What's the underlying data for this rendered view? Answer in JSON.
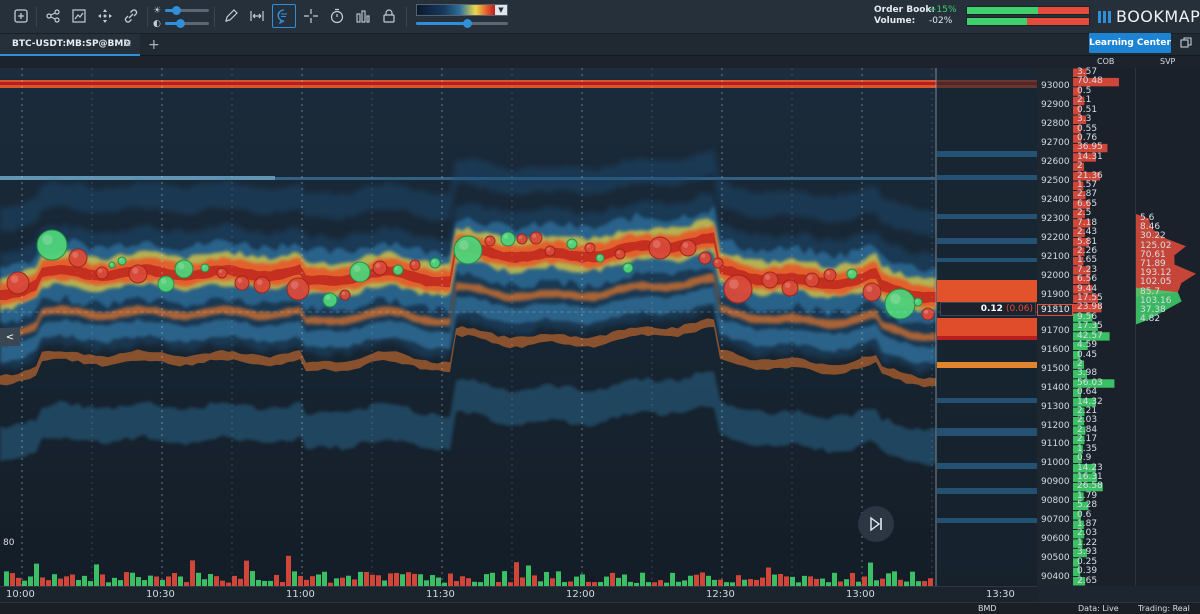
{
  "toolbar": {
    "buttons": [
      "zoom-in-icon",
      "share-icon",
      "indicators-icon",
      "move-icon",
      "link-icon"
    ],
    "right_buttons": [
      "pencil-icon",
      "range-icon",
      "chat-icon",
      "crosshair-icon",
      "timer-icon",
      "chart-settings-icon",
      "lock-icon"
    ],
    "brightness_level": 0.25,
    "contrast_level": 0.35,
    "palette_zoom_level": 0.55
  },
  "order_book": {
    "book_label": "Order Book:",
    "volume_label": "Volume:",
    "book_value": "+15%",
    "volume_value": "-02%",
    "book_color": "#3fd16b",
    "volume_color": "#e4e9ef",
    "book_buy_fraction": 0.58,
    "volume_buy_fraction": 0.49
  },
  "brand": {
    "name": "BOOKMAP",
    "accent": "#2f8fd8"
  },
  "tabs": [
    {
      "label": "BTC-USDT:MB:SP@BMD",
      "close": "✕"
    }
  ],
  "tab_add_label": "+",
  "learning_center_label": "Learning Center",
  "columns": {
    "cob": "COB",
    "svp": "SVP"
  },
  "price_axis": [
    "93000",
    "92900",
    "92800",
    "92700",
    "92600",
    "92500",
    "92400",
    "92300",
    "92200",
    "92100",
    "92000",
    "91900",
    "91810",
    "91700",
    "91600",
    "91500",
    "91400",
    "91300",
    "91200",
    "91100",
    "91000",
    "90900",
    "90800",
    "90700",
    "90600",
    "90500",
    "90400"
  ],
  "last_price": "91810",
  "marker": {
    "value": "0.12",
    "delta": "(0.06)"
  },
  "cob_values": [
    "3.57",
    "70.48",
    "0.5",
    "2.1",
    "0.51",
    "3.3",
    "0.55",
    "0.76",
    "36.95",
    "14.31",
    "2",
    "21.36",
    "1.57",
    "2.87",
    "6.65",
    "2.5",
    "7.18",
    "2.43",
    "5.81",
    "2.26",
    "1.65",
    "7.23",
    "6.56",
    "9.44",
    "17.55",
    "23.98",
    "9.56",
    "17.35",
    "42.57",
    "4.59",
    "0.45",
    "2",
    "3.98",
    "56.03",
    "0.64",
    "14.32",
    "2.21",
    "2.03",
    "2.84",
    "2.17",
    "1.35",
    "0.9",
    "14.23",
    "16.31",
    "26.58",
    "1.79",
    "5.28",
    "0.6",
    "1.87",
    "2.03",
    "1.22",
    "3.93",
    "0.25",
    "0.39",
    "2.65"
  ],
  "svp_values": [
    "5.6",
    "8.46",
    "30.22",
    "125.02",
    "70.61",
    "71.89",
    "193.12",
    "102.05",
    "85.7",
    "103.16",
    "37.38",
    "4.82"
  ],
  "time_axis": [
    "10:00",
    "10:30",
    "11:00",
    "11:30",
    "12:00",
    "12:30",
    "13:00",
    "13:30"
  ],
  "volume_scale": "80",
  "status": {
    "exchange": "BMD",
    "data": "Data: Live",
    "trading": "Trading: Real"
  },
  "colors": {
    "buy": "#3fd16b",
    "sell": "#e44b3b",
    "accent": "#2f8fd8"
  }
}
